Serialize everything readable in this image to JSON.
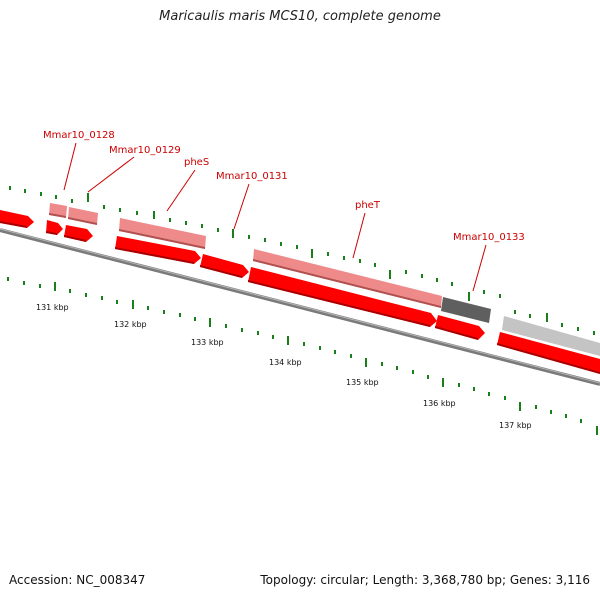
{
  "title": "Maricaulis maris MCS10, complete genome",
  "footer": {
    "accession": "Accession: NC_008347",
    "stats": "Topology: circular; Length: 3,368,780 bp; Genes: 3,116"
  },
  "colors": {
    "cds_forward": "#ff0000",
    "cds_pale": "#ee8a8a",
    "cds_dark_grey": "#5f5f5f",
    "cds_light_grey": "#c4c4c4",
    "backbone": "#808080",
    "tick_green": "#1a7f1a",
    "label_red": "#cc0000"
  },
  "gene_labels": [
    "Mmar10_0128",
    "Mmar10_0129",
    "pheS",
    "Mmar10_0131",
    "pheT",
    "Mmar10_0133"
  ],
  "kbp_labels": [
    "131 kbp",
    "132 kbp",
    "133 kbp",
    "134 kbp",
    "135 kbp",
    "136 kbp",
    "137 kbp"
  ]
}
